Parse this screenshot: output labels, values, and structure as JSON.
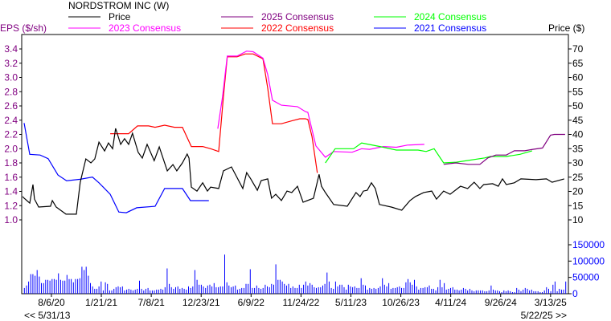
{
  "chart_data": {
    "type": "line",
    "title": "NORDSTROM INC (W)",
    "ylabel_left": "EPS ($/sh)",
    "ylabel_right": "Price ($)",
    "xlim": [
      "2020-04-28",
      "2025-05-12"
    ],
    "range_start_label": "<< 5/31/13",
    "range_end_label": "5/22/25 >>",
    "x_ticks": [
      {
        "date": "2020-08-06",
        "label": "8/6/20"
      },
      {
        "date": "2021-01-21",
        "label": "1/21/21"
      },
      {
        "date": "2021-07-08",
        "label": "7/8/21"
      },
      {
        "date": "2021-12-23",
        "label": "12/23/21"
      },
      {
        "date": "2022-06-09",
        "label": "6/9/22"
      },
      {
        "date": "2022-11-24",
        "label": "11/24/22"
      },
      {
        "date": "2023-05-11",
        "label": "5/11/23"
      },
      {
        "date": "2023-10-26",
        "label": "10/26/23"
      },
      {
        "date": "2024-04-11",
        "label": "4/11/24"
      },
      {
        "date": "2024-09-26",
        "label": "9/26/24"
      },
      {
        "date": "2025-03-13",
        "label": "3/13/25"
      }
    ],
    "eps_axis": {
      "ticks": [
        "3.4",
        "3.2",
        "3.0",
        "2.8",
        "2.6",
        "2.4",
        "2.2",
        "2.0",
        "1.8",
        "1.6",
        "1.4",
        "1.2",
        "1.0"
      ],
      "color": "#800080"
    },
    "price_axis": {
      "ticks": [
        "70",
        "65",
        "60",
        "55",
        "50",
        "45",
        "40",
        "35",
        "30",
        "25",
        "20",
        "15",
        "10"
      ],
      "color": "#000000"
    },
    "volume_axis": {
      "ticks": [
        "150000",
        "100000",
        "50000",
        "0"
      ],
      "color": "#0000ff"
    },
    "legend": [
      {
        "key": "price",
        "label": "Price",
        "color": "#000000"
      },
      {
        "key": "c2025",
        "label": "2025 Consensus",
        "color": "#800080"
      },
      {
        "key": "c2024",
        "label": "2024 Consensus",
        "color": "#00ff00"
      },
      {
        "key": "c2023",
        "label": "2023 Consensus",
        "color": "#ff00ff"
      },
      {
        "key": "c2022",
        "label": "2022 Consensus",
        "color": "#ff0000"
      },
      {
        "key": "c2021",
        "label": "2021 Consensus",
        "color": "#0000ff"
      }
    ],
    "price": [
      [
        "2020-05-01",
        18.2
      ],
      [
        "2020-05-06",
        17.6
      ],
      [
        "2020-05-25",
        15.9
      ],
      [
        "2020-06-05",
        22.4
      ],
      [
        "2020-06-10",
        17.3
      ],
      [
        "2020-06-24",
        14.5
      ],
      [
        "2020-08-03",
        14.8
      ],
      [
        "2020-08-09",
        16.8
      ],
      [
        "2020-08-22",
        14.5
      ],
      [
        "2020-09-24",
        12.0
      ],
      [
        "2020-10-29",
        12.0
      ],
      [
        "2020-11-11",
        23.2
      ],
      [
        "2020-11-30",
        31.4
      ],
      [
        "2020-12-17",
        30.0
      ],
      [
        "2020-12-30",
        31.4
      ],
      [
        "2021-01-13",
        37.3
      ],
      [
        "2021-02-01",
        34.2
      ],
      [
        "2021-02-14",
        37.0
      ],
      [
        "2021-02-28",
        35.0
      ],
      [
        "2021-03-10",
        42.1
      ],
      [
        "2021-03-27",
        36.5
      ],
      [
        "2021-04-09",
        38.5
      ],
      [
        "2021-04-23",
        36.5
      ],
      [
        "2021-05-06",
        40.4
      ],
      [
        "2021-05-25",
        33.7
      ],
      [
        "2021-06-08",
        31.7
      ],
      [
        "2021-06-24",
        36.5
      ],
      [
        "2021-07-18",
        30.8
      ],
      [
        "2021-08-04",
        35.6
      ],
      [
        "2021-08-31",
        27.2
      ],
      [
        "2021-09-19",
        29.4
      ],
      [
        "2021-10-02",
        27.2
      ],
      [
        "2021-10-21",
        30.0
      ],
      [
        "2021-11-06",
        33.1
      ],
      [
        "2021-11-12",
        31.7
      ],
      [
        "2021-11-20",
        21.5
      ],
      [
        "2021-12-09",
        20.1
      ],
      [
        "2021-12-28",
        23.0
      ],
      [
        "2022-01-13",
        20.1
      ],
      [
        "2022-01-24",
        21.5
      ],
      [
        "2022-02-20",
        21.0
      ],
      [
        "2022-03-08",
        27.2
      ],
      [
        "2022-04-04",
        28.6
      ],
      [
        "2022-04-18",
        25.8
      ],
      [
        "2022-05-12",
        21.0
      ],
      [
        "2022-05-25",
        26.6
      ],
      [
        "2022-06-08",
        24.4
      ],
      [
        "2022-06-30",
        20.4
      ],
      [
        "2022-07-13",
        23.8
      ],
      [
        "2022-08-04",
        24.4
      ],
      [
        "2022-08-17",
        17.6
      ],
      [
        "2022-08-31",
        19.0
      ],
      [
        "2022-09-19",
        16.8
      ],
      [
        "2022-10-08",
        20.1
      ],
      [
        "2022-10-24",
        19.6
      ],
      [
        "2022-11-12",
        21.8
      ],
      [
        "2022-12-01",
        16.2
      ],
      [
        "2023-01-05",
        17.6
      ],
      [
        "2023-01-24",
        26.0
      ],
      [
        "2023-02-01",
        21.8
      ],
      [
        "2023-02-14",
        19.6
      ],
      [
        "2023-03-14",
        15.4
      ],
      [
        "2023-04-29",
        14.8
      ],
      [
        "2023-05-28",
        19.6
      ],
      [
        "2023-06-11",
        18.2
      ],
      [
        "2023-06-22",
        20.1
      ],
      [
        "2023-07-05",
        20.4
      ],
      [
        "2023-07-19",
        23.0
      ],
      [
        "2023-08-01",
        21.0
      ],
      [
        "2023-08-15",
        15.4
      ],
      [
        "2023-09-24",
        14.5
      ],
      [
        "2023-10-29",
        13.4
      ],
      [
        "2023-11-26",
        16.8
      ],
      [
        "2023-12-14",
        18.2
      ],
      [
        "2024-01-11",
        19.6
      ],
      [
        "2024-02-07",
        20.1
      ],
      [
        "2024-02-23",
        17.3
      ],
      [
        "2024-03-18",
        20.1
      ],
      [
        "2024-04-09",
        19.0
      ],
      [
        "2024-05-14",
        21.8
      ],
      [
        "2024-06-07",
        21.0
      ],
      [
        "2024-06-29",
        23.2
      ],
      [
        "2024-07-18",
        21.0
      ],
      [
        "2024-07-31",
        22.4
      ],
      [
        "2024-08-30",
        22.7
      ],
      [
        "2024-09-18",
        21.8
      ],
      [
        "2024-10-02",
        24.4
      ],
      [
        "2024-10-15",
        22.4
      ],
      [
        "2024-11-11",
        23.0
      ],
      [
        "2024-12-03",
        24.4
      ],
      [
        "2025-01-23",
        24.1
      ],
      [
        "2025-02-27",
        24.4
      ],
      [
        "2025-03-18",
        23.2
      ],
      [
        "2025-04-28",
        24.4
      ]
    ],
    "c2021": [
      [
        "2020-05-06",
        2.36
      ],
      [
        "2020-05-25",
        1.92
      ],
      [
        "2020-06-29",
        1.91
      ],
      [
        "2020-07-26",
        1.86
      ],
      [
        "2020-08-28",
        1.63
      ],
      [
        "2020-09-26",
        1.55
      ],
      [
        "2020-11-11",
        1.57
      ],
      [
        "2020-12-22",
        1.6
      ],
      [
        "2021-01-13",
        1.52
      ],
      [
        "2021-02-20",
        1.36
      ],
      [
        "2021-03-21",
        1.11
      ],
      [
        "2021-04-15",
        1.1
      ],
      [
        "2021-05-20",
        1.17
      ],
      [
        "2021-07-21",
        1.19
      ],
      [
        "2021-08-22",
        1.44
      ],
      [
        "2021-10-21",
        1.44
      ],
      [
        "2021-11-17",
        1.27
      ],
      [
        "2022-01-18",
        1.27
      ]
    ],
    "c2022": [
      [
        "2021-02-20",
        2.21
      ],
      [
        "2021-04-23",
        2.21
      ],
      [
        "2021-05-23",
        2.32
      ],
      [
        "2021-06-29",
        2.32
      ],
      [
        "2021-07-21",
        2.3
      ],
      [
        "2021-08-22",
        2.33
      ],
      [
        "2021-09-24",
        2.3
      ],
      [
        "2021-10-21",
        2.3
      ],
      [
        "2021-11-20",
        2.03
      ],
      [
        "2021-12-28",
        2.03
      ],
      [
        "2022-01-24",
        2.0
      ],
      [
        "2022-02-20",
        1.96
      ],
      [
        "2022-03-08",
        2.73
      ],
      [
        "2022-03-21",
        3.29
      ],
      [
        "2022-04-23",
        3.29
      ],
      [
        "2022-05-20",
        3.33
      ],
      [
        "2022-06-16",
        3.33
      ],
      [
        "2022-07-19",
        3.26
      ],
      [
        "2022-08-04",
        2.85
      ],
      [
        "2022-08-20",
        2.35
      ],
      [
        "2022-09-19",
        2.35
      ],
      [
        "2022-10-24",
        2.39
      ],
      [
        "2022-11-20",
        2.42
      ],
      [
        "2022-12-09",
        2.42
      ],
      [
        "2022-12-17",
        2.41
      ],
      [
        "2022-12-31",
        2.17
      ],
      [
        "2023-01-18",
        1.66
      ]
    ],
    "c2023": [
      [
        "2022-02-17",
        2.28
      ],
      [
        "2022-03-05",
        2.73
      ],
      [
        "2022-03-21",
        3.3
      ],
      [
        "2022-04-23",
        3.3
      ],
      [
        "2022-05-25",
        3.37
      ],
      [
        "2022-06-16",
        3.36
      ],
      [
        "2022-07-19",
        3.27
      ],
      [
        "2022-08-04",
        3.04
      ],
      [
        "2022-08-20",
        2.68
      ],
      [
        "2022-09-19",
        2.61
      ],
      [
        "2022-11-12",
        2.59
      ],
      [
        "2022-12-09",
        2.52
      ],
      [
        "2022-12-17",
        2.51
      ],
      [
        "2023-01-13",
        2.04
      ],
      [
        "2023-02-14",
        1.88
      ],
      [
        "2023-03-14",
        1.96
      ],
      [
        "2023-05-15",
        1.95
      ],
      [
        "2023-06-16",
        2.0
      ],
      [
        "2023-07-13",
        1.99
      ],
      [
        "2023-08-28",
        2.03
      ],
      [
        "2023-10-11",
        2.02
      ],
      [
        "2023-11-17",
        2.05
      ],
      [
        "2024-01-13",
        2.06
      ]
    ],
    "c2024": [
      [
        "2023-02-14",
        1.8
      ],
      [
        "2023-03-19",
        2.0
      ],
      [
        "2023-05-20",
        2.0
      ],
      [
        "2023-06-16",
        2.08
      ],
      [
        "2023-08-17",
        2.03
      ],
      [
        "2023-10-11",
        1.98
      ],
      [
        "2023-12-23",
        1.98
      ],
      [
        "2024-01-19",
        1.96
      ],
      [
        "2024-02-15",
        2.0
      ],
      [
        "2024-03-18",
        1.8
      ],
      [
        "2024-04-30",
        1.81
      ],
      [
        "2024-08-03",
        1.87
      ],
      [
        "2024-08-22",
        1.89
      ],
      [
        "2024-10-15",
        1.89
      ],
      [
        "2024-11-30",
        1.92
      ],
      [
        "2025-01-10",
        1.97
      ]
    ],
    "c2025": [
      [
        "2024-03-18",
        1.78
      ],
      [
        "2024-04-28",
        1.8
      ],
      [
        "2024-06-10",
        1.78
      ],
      [
        "2024-07-18",
        1.78
      ],
      [
        "2024-08-14",
        1.87
      ],
      [
        "2024-09-10",
        1.91
      ],
      [
        "2024-10-15",
        1.91
      ],
      [
        "2024-11-11",
        1.97
      ],
      [
        "2024-12-16",
        1.97
      ],
      [
        "2025-01-12",
        1.99
      ],
      [
        "2025-02-14",
        2.01
      ],
      [
        "2025-03-13",
        2.19
      ],
      [
        "2025-03-26",
        2.2
      ],
      [
        "2025-05-01",
        2.2
      ]
    ],
    "volume": {
      "frequency": "weekly",
      "values": [
        17500,
        25000,
        37500,
        60000,
        60000,
        55000,
        72500,
        52500,
        32500,
        32500,
        42500,
        42500,
        40000,
        45000,
        45000,
        42500,
        62500,
        42500,
        40000,
        40000,
        57500,
        45000,
        45000,
        35000,
        45000,
        45000,
        47500,
        82500,
        72500,
        82500,
        55000,
        32500,
        22500,
        15000,
        15000,
        22500,
        37500,
        10000,
        35000,
        30000,
        10000,
        10000,
        15000,
        20000,
        22500,
        20000,
        22500,
        10000,
        12500,
        15000,
        12500,
        10000,
        12500,
        15000,
        40000,
        15000,
        10000,
        15000,
        17500,
        10000,
        10000,
        10000,
        12500,
        12500,
        15000,
        12500,
        20000,
        77500,
        30000,
        20000,
        15000,
        20000,
        22500,
        15000,
        17500,
        15000,
        12500,
        22500,
        17500,
        22500,
        72500,
        42500,
        27500,
        27500,
        22500,
        17500,
        25000,
        27500,
        22500,
        32500,
        20000,
        20000,
        22500,
        22500,
        120000,
        35000,
        25000,
        20000,
        22500,
        25000,
        12500,
        15000,
        17500,
        17500,
        30000,
        30000,
        75000,
        17500,
        17500,
        25000,
        17500,
        15000,
        17500,
        27500,
        22500,
        20000,
        30000,
        27500,
        90000,
        42500,
        42500,
        37500,
        30000,
        25000,
        30000,
        17500,
        22500,
        17500,
        17500,
        27500,
        17500,
        27500,
        37500,
        25000,
        32500,
        27500,
        20000,
        17500,
        20000,
        20000,
        25000,
        30000,
        65000,
        37500,
        17500,
        15000,
        37500,
        22500,
        27500,
        27500,
        20000,
        12500,
        27500,
        22500,
        20000,
        22500,
        17500,
        17500,
        47500,
        27500,
        25000,
        12500,
        17500,
        15000,
        17500,
        15000,
        17500,
        22500,
        47500,
        27500,
        22500,
        32500,
        15000,
        17500,
        17500,
        20000,
        22500,
        17500,
        17500,
        35000,
        45000,
        35000,
        27500,
        42500,
        22500,
        12500,
        17500,
        17500,
        20000,
        20000,
        25000,
        15000,
        15000,
        10000,
        20000,
        42500,
        20000,
        32500,
        12500,
        15000,
        17500,
        20000,
        12500,
        12500,
        10000,
        12500,
        17500,
        15000,
        10000,
        15000,
        10000,
        7500,
        10000,
        10000,
        10000,
        10000,
        7500,
        7500,
        10000,
        25000,
        12500,
        10000,
        10000,
        7500,
        5000,
        10000,
        7500,
        10000,
        7500,
        5000,
        5000,
        17500,
        12500,
        7500,
        12500,
        17500,
        15000,
        10000,
        12500,
        7500,
        7500,
        7500,
        5000,
        5000,
        10000,
        20000,
        15000,
        7500,
        27500,
        37500,
        7500,
        15000,
        12500,
        12500,
        37500
      ]
    }
  }
}
